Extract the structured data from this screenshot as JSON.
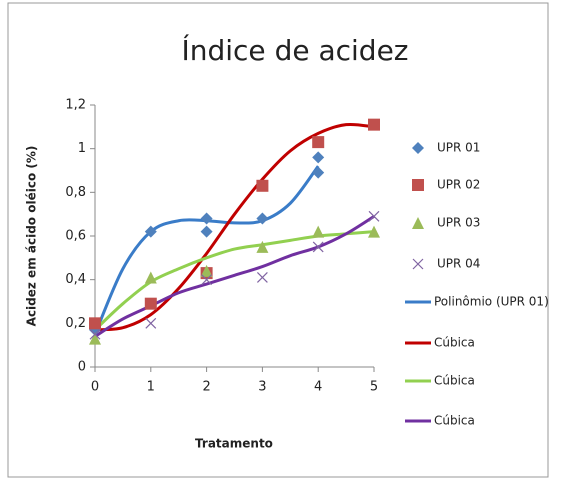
{
  "chart_data": {
    "type": "scatter",
    "title": "Índice de acidez",
    "xlabel": "Tratamento",
    "ylabel": "Acidez em ácido oléico (%)",
    "xlim": [
      0,
      5
    ],
    "xticks": [
      0,
      1,
      2,
      3,
      4,
      5
    ],
    "ylim": [
      0,
      1.2
    ],
    "yticks": [
      0,
      {
        "value": 0.2,
        "label": "0,2"
      },
      {
        "value": 0.4,
        "label": "0,4"
      },
      {
        "value": 0.6,
        "label": "0,6"
      },
      {
        "value": 0.8,
        "label": "0,8"
      },
      1,
      {
        "value": 1.2,
        "label": "1,2"
      }
    ],
    "legend": "right",
    "series": [
      {
        "name": "UPR 01",
        "color": "#4f81bd",
        "marker": "diamond",
        "x": [
          0,
          1,
          2,
          2,
          3,
          4,
          4
        ],
        "values": [
          0.17,
          0.62,
          0.68,
          0.62,
          0.68,
          0.96,
          0.89
        ]
      },
      {
        "name": "UPR 02",
        "color": "#c0504d",
        "marker": "square",
        "x": [
          0,
          1,
          2,
          3,
          4,
          5
        ],
        "values": [
          0.2,
          0.29,
          0.43,
          0.83,
          1.03,
          1.11
        ]
      },
      {
        "name": "UPR 03",
        "color": "#9bbb59",
        "marker": "triangle",
        "x": [
          0,
          1,
          2,
          3,
          4,
          5
        ],
        "values": [
          0.13,
          0.41,
          0.44,
          0.55,
          0.62,
          0.62
        ]
      },
      {
        "name": "UPR 04",
        "color": "#8064a2",
        "marker": "x",
        "x": [
          0,
          1,
          2,
          3,
          4,
          5
        ],
        "values": [
          0.15,
          0.2,
          0.4,
          0.41,
          0.55,
          0.69
        ]
      },
      {
        "name": "Polinômio (UPR 01)",
        "color": "#3a7cc8",
        "marker": "line",
        "x": [
          0,
          0.5,
          1,
          1.5,
          2,
          2.5,
          3,
          3.5,
          4
        ],
        "values": [
          0.15,
          0.45,
          0.62,
          0.67,
          0.67,
          0.66,
          0.67,
          0.75,
          0.92
        ]
      },
      {
        "name": "Cúbica",
        "color": "#c00000",
        "marker": "line",
        "x": [
          0,
          0.5,
          1,
          1.5,
          2,
          2.5,
          3,
          3.5,
          4,
          4.5,
          5
        ],
        "values": [
          0.17,
          0.18,
          0.24,
          0.36,
          0.52,
          0.7,
          0.86,
          0.99,
          1.07,
          1.11,
          1.1
        ]
      },
      {
        "name": "Cúbica",
        "color": "#92d050",
        "marker": "line",
        "x": [
          0,
          0.5,
          1,
          1.5,
          2,
          2.5,
          3,
          3.5,
          4,
          4.5,
          5
        ],
        "values": [
          0.17,
          0.29,
          0.39,
          0.45,
          0.5,
          0.54,
          0.56,
          0.58,
          0.6,
          0.61,
          0.62
        ]
      },
      {
        "name": "Cúbica",
        "color": "#7030a0",
        "marker": "line",
        "x": [
          0,
          0.5,
          1,
          1.5,
          2,
          2.5,
          3,
          3.5,
          4,
          4.5,
          5
        ],
        "values": [
          0.14,
          0.22,
          0.28,
          0.34,
          0.38,
          0.42,
          0.46,
          0.51,
          0.55,
          0.61,
          0.69
        ]
      }
    ]
  }
}
